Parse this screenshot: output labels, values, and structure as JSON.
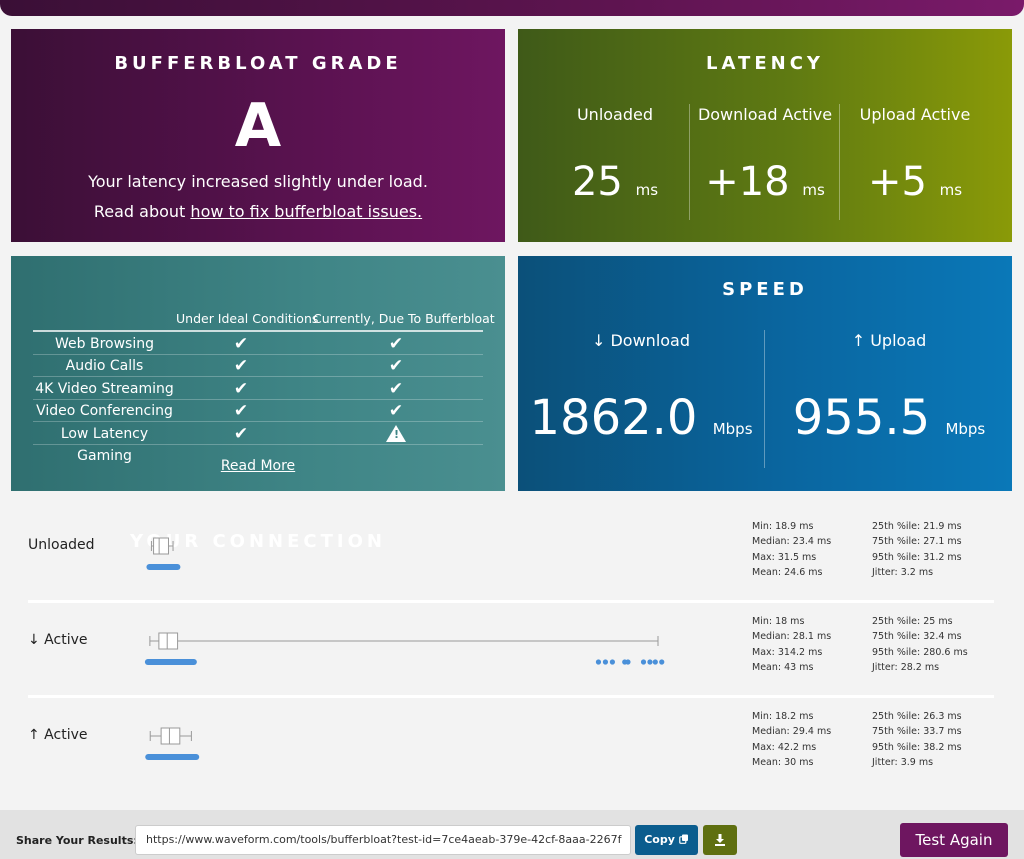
{
  "grade": {
    "title": "BUFFERBLOAT GRADE",
    "letter": "A",
    "description": "Your latency increased slightly under load.",
    "link_prefix": "Read about ",
    "link_text": "how to fix bufferbloat issues."
  },
  "latency": {
    "title": "LATENCY",
    "columns": [
      {
        "label": "Unloaded",
        "value": "25",
        "unit": "ms"
      },
      {
        "label": "Download Active",
        "value": "+18",
        "unit": "ms"
      },
      {
        "label": "Upload Active",
        "value": "+5",
        "unit": "ms"
      }
    ]
  },
  "connection": {
    "title": "YOUR CONNECTION",
    "col_ideal": "Under Ideal Conditions",
    "col_current": "Currently, Due To Bufferbloat",
    "rows": [
      {
        "label": "Web Browsing",
        "ideal": "check",
        "current": "check"
      },
      {
        "label": "Audio Calls",
        "ideal": "check",
        "current": "check"
      },
      {
        "label": "4K Video Streaming",
        "ideal": "check",
        "current": "check"
      },
      {
        "label": "Video Conferencing",
        "ideal": "check",
        "current": "check"
      },
      {
        "label": "Low Latency Gaming",
        "ideal": "check",
        "current": "warning"
      }
    ],
    "read_more": "Read More"
  },
  "speed": {
    "title": "SPEED",
    "download": {
      "label": "↓ Download",
      "value": "1862.0",
      "unit": "Mbps"
    },
    "upload": {
      "label": "↑ Upload",
      "value": "955.5",
      "unit": "Mbps"
    }
  },
  "plots": {
    "scale_max_ms": 314.2,
    "rows": [
      {
        "label": "Unloaded",
        "min": 18.9,
        "q1": 21.9,
        "median": 23.4,
        "q3": 27.1,
        "max": 31.5,
        "stats_left": [
          "Min: 18.9 ms",
          "Median: 23.4 ms",
          "Max: 31.5 ms",
          "Mean: 24.6 ms"
        ],
        "stats_right": [
          "25th %ile: 21.9 ms",
          "75th %ile: 27.1 ms",
          "95th %ile: 31.2 ms",
          "Jitter: 3.2 ms"
        ]
      },
      {
        "label": "↓ Active",
        "min": 18,
        "q1": 25,
        "median": 28.1,
        "q3": 32.4,
        "max": 314.2,
        "stats_left": [
          "Min: 18 ms",
          "Median: 28.1 ms",
          "Max: 314.2 ms",
          "Mean: 43 ms"
        ],
        "stats_right": [
          "25th %ile: 25 ms",
          "75th %ile: 32.4 ms",
          "95th %ile: 280.6 ms",
          "Jitter: 28.2 ms"
        ]
      },
      {
        "label": "↑ Active",
        "min": 18.2,
        "q1": 26.3,
        "median": 29.4,
        "q3": 33.7,
        "max": 42.2,
        "stats_left": [
          "Min: 18.2 ms",
          "Median: 29.4 ms",
          "Max: 42.2 ms",
          "Mean: 30 ms"
        ],
        "stats_right": [
          "25th %ile: 26.3 ms",
          "75th %ile: 33.7 ms",
          "95th %ile: 38.2 ms",
          "Jitter: 3.9 ms"
        ]
      }
    ]
  },
  "share": {
    "label": "Share Your Results:",
    "url": "https://www.waveform.com/tools/bufferbloat?test-id=7ce4aeab-379e-42cf-8aaa-2267f",
    "copy_label": "Copy",
    "download_icon": "download-icon",
    "test_again_label": "Test Again"
  },
  "colors": {
    "grade": "#5a1250",
    "latency": "#5f7a12",
    "connection": "#3f8586",
    "speed": "#0a66a0",
    "dots": "#4a90d9"
  }
}
